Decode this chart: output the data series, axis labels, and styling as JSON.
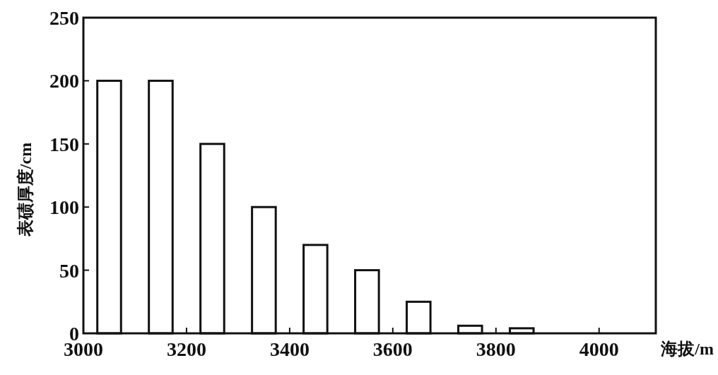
{
  "chart_data": {
    "type": "bar",
    "xlabel": "海拔/m",
    "ylabel": "表碛厚度/cm",
    "x": [
      3050,
      3150,
      3250,
      3350,
      3450,
      3550,
      3650,
      3750,
      3850
    ],
    "values": [
      200,
      200,
      150,
      100,
      70,
      50,
      25,
      6,
      4
    ],
    "color": "#ffffff",
    "xlim": [
      3000,
      4110
    ],
    "xticks": [
      3000,
      3200,
      3400,
      3600,
      3800,
      4000
    ],
    "ylim": [
      0,
      250
    ],
    "yticks": [
      0,
      50,
      100,
      150,
      200,
      250
    ],
    "grid": false
  }
}
